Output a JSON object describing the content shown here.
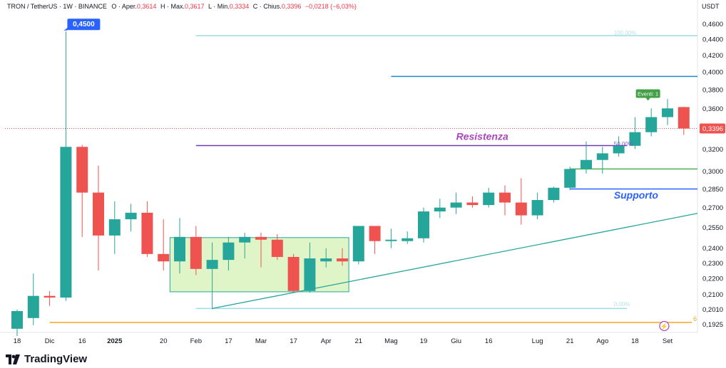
{
  "header": {
    "symbol": "TRON / TetherUS · 1W · BINANCE",
    "open_label": "O ·",
    "open_prefix": "Aper.",
    "open": "0,3614",
    "high_label": "H ·",
    "high_prefix": "Max.",
    "high": "0,3617",
    "low_label": "L ·",
    "low_prefix": "Min.",
    "low": "0,3334",
    "close_label": "C ·",
    "close_prefix": "Chius.",
    "close": "0,3396",
    "change": "−0,0218 (−6,03%)"
  },
  "currency": "USDT",
  "brand": "TradingView",
  "colors": {
    "up": "#26a69a",
    "down": "#ef5350",
    "resist": "#6a3cb5",
    "support": "#2962ff",
    "trend": "#26a69a",
    "fib": "#9ddbe4",
    "box": "#dff5c8",
    "text_purple": "#ab47bc",
    "green_line": "#4caf50",
    "blue_line": "#1e88c8",
    "orange": "#f5a623"
  },
  "chart_data": {
    "type": "candlestick",
    "interval": "1W",
    "x_labels": [
      "18",
      "Dic",
      "16",
      "2025",
      "20",
      "Feb",
      "17",
      "Mar",
      "17",
      "Apr",
      "21",
      "Mag",
      "19",
      "Giu",
      "16",
      "Lug",
      "21",
      "Ago",
      "18",
      "Set"
    ],
    "x_label_index": [
      0,
      2,
      4,
      6,
      9,
      11,
      13,
      15,
      17,
      19,
      21,
      23,
      25,
      27,
      29,
      32,
      34,
      36,
      38,
      40
    ],
    "y_ticks": [
      "0,4600",
      "0,4400",
      "0,4200",
      "0,4000",
      "0,3800",
      "0,3600",
      "0,3396",
      "0,3200",
      "0,3000",
      "0,2850",
      "0,2700",
      "0,2550",
      "0,2400",
      "0,2300",
      "0,2200",
      "0,2100",
      "0,2010",
      "0,1925"
    ],
    "y_tick_values": [
      0.46,
      0.44,
      0.42,
      0.4,
      0.38,
      0.36,
      0.3396,
      0.32,
      0.3,
      0.285,
      0.27,
      0.255,
      0.24,
      0.23,
      0.22,
      0.21,
      0.201,
      0.1925
    ],
    "y_scale": "log",
    "ylim": [
      0.188,
      0.475
    ],
    "last_price": "0,3396",
    "high_marker": "0,4500",
    "candles": [
      {
        "o": 0.19,
        "h": 0.201,
        "l": 0.186,
        "c": 0.2
      },
      {
        "o": 0.196,
        "h": 0.223,
        "l": 0.192,
        "c": 0.209
      },
      {
        "o": 0.209,
        "h": 0.212,
        "l": 0.203,
        "c": 0.208
      },
      {
        "o": 0.208,
        "h": 0.45,
        "l": 0.206,
        "c": 0.322
      },
      {
        "o": 0.322,
        "h": 0.324,
        "l": 0.248,
        "c": 0.282
      },
      {
        "o": 0.282,
        "h": 0.305,
        "l": 0.225,
        "c": 0.249
      },
      {
        "o": 0.249,
        "h": 0.275,
        "l": 0.236,
        "c": 0.261
      },
      {
        "o": 0.261,
        "h": 0.273,
        "l": 0.252,
        "c": 0.266
      },
      {
        "o": 0.266,
        "h": 0.275,
        "l": 0.234,
        "c": 0.236
      },
      {
        "o": 0.236,
        "h": 0.261,
        "l": 0.225,
        "c": 0.231
      },
      {
        "o": 0.231,
        "h": 0.262,
        "l": 0.223,
        "c": 0.248
      },
      {
        "o": 0.248,
        "h": 0.256,
        "l": 0.222,
        "c": 0.226
      },
      {
        "o": 0.226,
        "h": 0.244,
        "l": 0.201,
        "c": 0.232
      },
      {
        "o": 0.232,
        "h": 0.248,
        "l": 0.225,
        "c": 0.244
      },
      {
        "o": 0.244,
        "h": 0.251,
        "l": 0.233,
        "c": 0.248
      },
      {
        "o": 0.248,
        "h": 0.251,
        "l": 0.227,
        "c": 0.246
      },
      {
        "o": 0.246,
        "h": 0.25,
        "l": 0.232,
        "c": 0.234
      },
      {
        "o": 0.234,
        "h": 0.236,
        "l": 0.211,
        "c": 0.212
      },
      {
        "o": 0.212,
        "h": 0.244,
        "l": 0.211,
        "c": 0.233
      },
      {
        "o": 0.231,
        "h": 0.24,
        "l": 0.227,
        "c": 0.233
      },
      {
        "o": 0.233,
        "h": 0.24,
        "l": 0.228,
        "c": 0.231
      },
      {
        "o": 0.231,
        "h": 0.256,
        "l": 0.229,
        "c": 0.256
      },
      {
        "o": 0.256,
        "h": 0.256,
        "l": 0.236,
        "c": 0.245
      },
      {
        "o": 0.245,
        "h": 0.254,
        "l": 0.24,
        "c": 0.246
      },
      {
        "o": 0.245,
        "h": 0.252,
        "l": 0.243,
        "c": 0.247
      },
      {
        "o": 0.247,
        "h": 0.27,
        "l": 0.244,
        "c": 0.267
      },
      {
        "o": 0.267,
        "h": 0.277,
        "l": 0.262,
        "c": 0.27
      },
      {
        "o": 0.27,
        "h": 0.282,
        "l": 0.265,
        "c": 0.274
      },
      {
        "o": 0.274,
        "h": 0.279,
        "l": 0.27,
        "c": 0.272
      },
      {
        "o": 0.272,
        "h": 0.286,
        "l": 0.27,
        "c": 0.282
      },
      {
        "o": 0.282,
        "h": 0.288,
        "l": 0.264,
        "c": 0.274
      },
      {
        "o": 0.274,
        "h": 0.294,
        "l": 0.257,
        "c": 0.264
      },
      {
        "o": 0.264,
        "h": 0.282,
        "l": 0.261,
        "c": 0.276
      },
      {
        "o": 0.276,
        "h": 0.287,
        "l": 0.274,
        "c": 0.286
      },
      {
        "o": 0.286,
        "h": 0.304,
        "l": 0.284,
        "c": 0.302
      },
      {
        "o": 0.302,
        "h": 0.327,
        "l": 0.298,
        "c": 0.31
      },
      {
        "o": 0.31,
        "h": 0.322,
        "l": 0.298,
        "c": 0.316
      },
      {
        "o": 0.316,
        "h": 0.332,
        "l": 0.313,
        "c": 0.323
      },
      {
        "o": 0.323,
        "h": 0.351,
        "l": 0.32,
        "c": 0.336
      },
      {
        "o": 0.336,
        "h": 0.36,
        "l": 0.332,
        "c": 0.351
      },
      {
        "o": 0.351,
        "h": 0.37,
        "l": 0.343,
        "c": 0.36
      },
      {
        "o": 0.3614,
        "h": 0.3617,
        "l": 0.3334,
        "c": 0.3396
      }
    ],
    "levels": {
      "resistenza": 0.3232,
      "supporto": 0.285,
      "green_line": 0.302,
      "blue_line": 0.395,
      "fib_100": 0.4445,
      "fib_0": 0.2015,
      "orange_line": 0.1935
    },
    "annotations": {
      "resistenza_label": "Resistenza",
      "supporto_label": "Supporto",
      "fib_100_label": "100,00%",
      "fib_50_label": "50,00%",
      "fib_0_label": "0,00%",
      "events_badge": "Eventi: 1",
      "orange_tag": "6",
      "lightning_glyph": "⚡"
    },
    "trendline": {
      "from": {
        "candle": 12,
        "price": 0.2015
      },
      "to": {
        "candle": 43,
        "price": 0.2655
      }
    },
    "box": {
      "from_candle": 9.4,
      "to_candle": 20.4,
      "high": 0.2475,
      "low": 0.2115
    }
  }
}
